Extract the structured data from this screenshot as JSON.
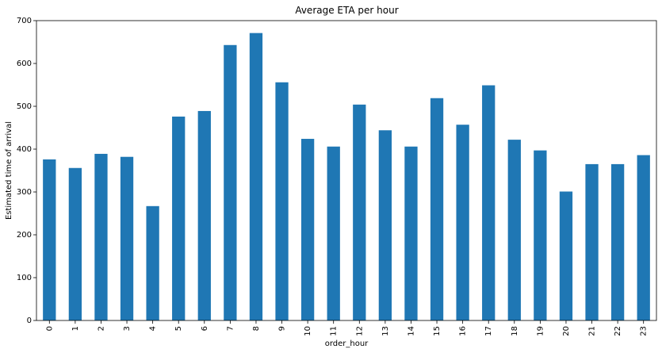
{
  "chart_data": {
    "type": "bar",
    "title": "Average ETA per hour",
    "xlabel": "order_hour",
    "ylabel": "Estimated time of arrival",
    "categories": [
      "0",
      "1",
      "2",
      "3",
      "4",
      "5",
      "6",
      "7",
      "8",
      "9",
      "10",
      "11",
      "12",
      "13",
      "14",
      "15",
      "16",
      "17",
      "18",
      "19",
      "20",
      "21",
      "22",
      "23"
    ],
    "values": [
      376,
      356,
      389,
      382,
      267,
      476,
      489,
      643,
      671,
      556,
      424,
      406,
      504,
      444,
      406,
      519,
      457,
      549,
      422,
      397,
      301,
      365,
      365,
      386
    ],
    "ylim": [
      0,
      700
    ],
    "yticks": [
      0,
      100,
      200,
      300,
      400,
      500,
      600,
      700
    ],
    "grid": false,
    "legend": "none",
    "bar_color": "#1f77b4"
  }
}
